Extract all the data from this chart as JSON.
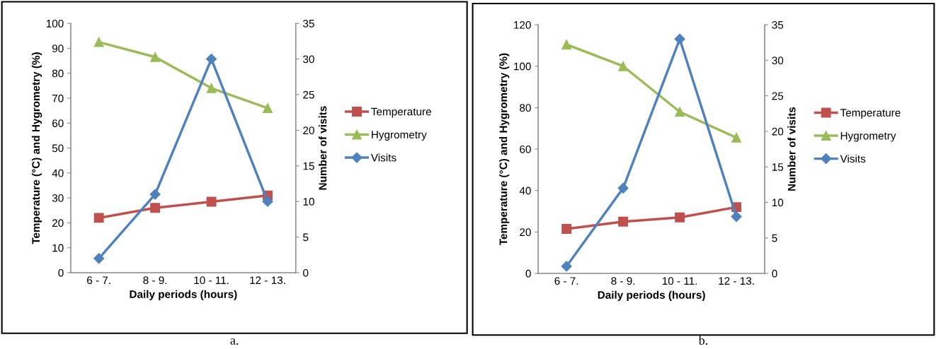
{
  "chart_data": [
    {
      "type": "line",
      "xlabel": "Daily periods (hours)",
      "ylabel": "Temperature (°C) and Hygrometry (%)",
      "y2label": "Number of visits",
      "categories": [
        "6 - 7.",
        "8 - 9.",
        "10 - 11.",
        "12 - 13."
      ],
      "ylim": [
        0,
        100
      ],
      "yticks": [
        0,
        10,
        20,
        30,
        40,
        50,
        60,
        70,
        80,
        90,
        100
      ],
      "y2lim": [
        0,
        35
      ],
      "y2ticks": [
        0,
        5,
        10,
        15,
        20,
        25,
        30,
        35
      ],
      "grid": false,
      "legend": "right",
      "annotations": [
        "a."
      ],
      "series": [
        {
          "name": "Temperature",
          "color": "#c0504d",
          "marker": "square",
          "values": [
            22,
            26,
            28.5,
            31
          ]
        },
        {
          "name": "Hygrometry",
          "color": "#9bbb59",
          "marker": "triangle",
          "values": [
            92.5,
            86.5,
            74,
            66
          ]
        },
        {
          "name": "Visits",
          "color": "#4f81bd",
          "marker": "diamond",
          "axis": "y2",
          "values": [
            2,
            11,
            30,
            10
          ]
        }
      ]
    },
    {
      "type": "line",
      "xlabel": "Daily periods (hours)",
      "ylabel": "Temperature (°C) and Hygrometry (%)",
      "y2label": "Number of visits",
      "categories": [
        "6 - 7.",
        "8 - 9.",
        "10 - 11.",
        "12 - 13."
      ],
      "ylim": [
        0,
        120
      ],
      "yticks": [
        0,
        20,
        40,
        60,
        80,
        100,
        120
      ],
      "y2lim": [
        0,
        35
      ],
      "y2ticks": [
        0,
        5,
        10,
        15,
        20,
        25,
        30,
        35
      ],
      "grid": false,
      "legend": "right",
      "annotations": [
        "b."
      ],
      "series": [
        {
          "name": "Temperature",
          "color": "#c0504d",
          "marker": "square",
          "values": [
            21.5,
            25,
            27,
            32
          ]
        },
        {
          "name": "Hygrometry",
          "color": "#9bbb59",
          "marker": "triangle",
          "values": [
            110.5,
            100,
            78,
            65.5
          ]
        },
        {
          "name": "Visits",
          "color": "#4f81bd",
          "marker": "diamond",
          "axis": "y2",
          "values": [
            1,
            12,
            33,
            8
          ]
        }
      ]
    }
  ]
}
